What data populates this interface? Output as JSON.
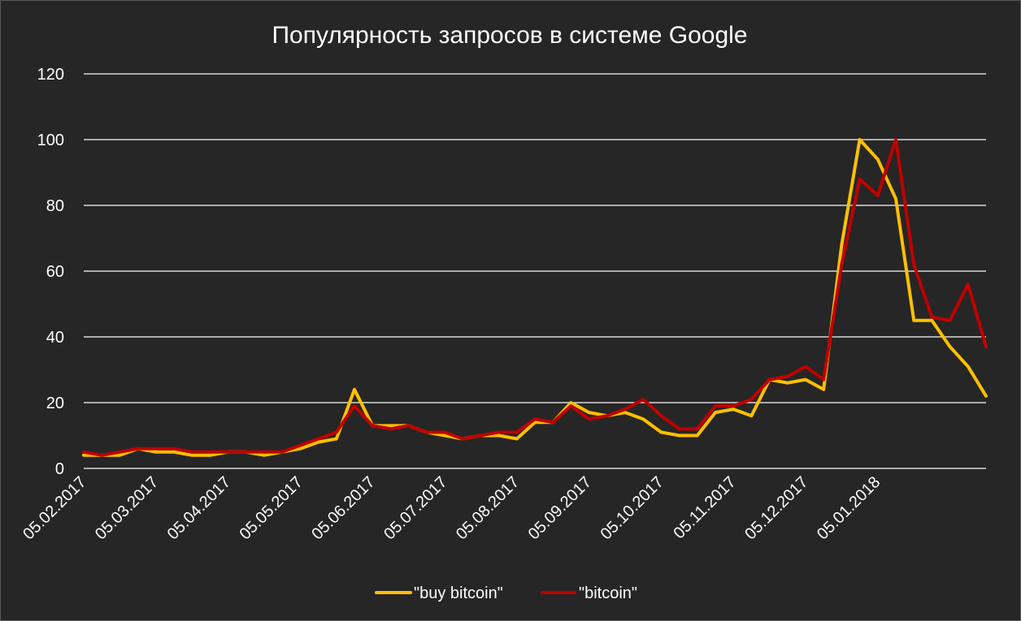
{
  "chart_data": {
    "type": "line",
    "title": "Популярность запросов в системе Google",
    "xlabel": "",
    "ylabel": "",
    "ylim": [
      0,
      120
    ],
    "yticks": [
      0,
      20,
      40,
      60,
      80,
      100,
      120
    ],
    "grid": true,
    "legend_position": "bottom",
    "background": "#262626",
    "x_tick_labels": [
      "05.02.2017",
      "05.03.2017",
      "05.04.2017",
      "05.05.2017",
      "05.06.2017",
      "05.07.2017",
      "05.08.2017",
      "05.09.2017",
      "05.10.2017",
      "05.11.2017",
      "05.12.2017",
      "05.01.2018"
    ],
    "x_tick_indices": [
      0,
      4,
      8,
      12,
      16,
      20,
      24,
      28,
      32,
      36,
      40,
      44
    ],
    "series": [
      {
        "name": "\"buy bitcoin\"",
        "color": "#ffc000",
        "values": [
          4,
          4,
          4,
          6,
          5,
          5,
          4,
          4,
          5,
          5,
          4,
          5,
          6,
          8,
          9,
          24,
          13,
          13,
          13,
          11,
          10,
          9,
          10,
          10,
          9,
          14,
          14,
          20,
          17,
          16,
          17,
          15,
          11,
          10,
          10,
          17,
          18,
          16,
          27,
          26,
          27,
          24,
          68,
          100,
          94,
          82,
          45,
          45,
          37,
          31,
          22
        ]
      },
      {
        "name": "\"bitcoin\"",
        "color": "#c00000",
        "values": [
          5,
          4,
          5,
          6,
          6,
          6,
          5,
          5,
          5,
          5,
          5,
          5,
          7,
          9,
          11,
          19,
          13,
          12,
          13,
          11,
          11,
          9,
          10,
          11,
          11,
          15,
          14,
          19,
          15,
          16,
          18,
          21,
          16,
          12,
          12,
          19,
          19,
          21,
          27,
          28,
          31,
          27,
          62,
          88,
          83,
          100,
          62,
          46,
          45,
          56,
          37
        ]
      }
    ]
  }
}
